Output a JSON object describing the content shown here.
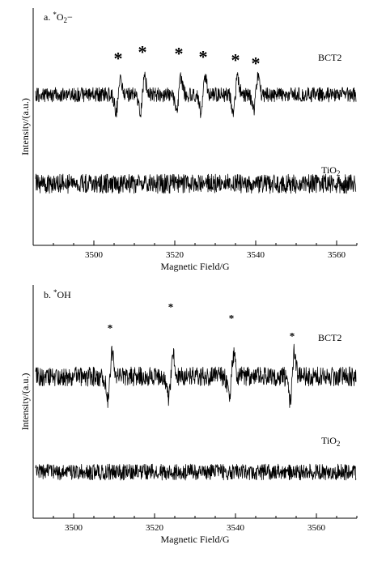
{
  "chart_data": [
    {
      "type": "line",
      "panel_label": "a. *O2−",
      "xlabel": "Magnetic Field/G",
      "ylabel": "Intensity/(a.u.)",
      "xlim": [
        3485,
        3565
      ],
      "x_ticks": [
        3500,
        3520,
        3540,
        3560
      ],
      "y_ticks_shown": false,
      "series": [
        {
          "name": "BCT2",
          "peak_markers": [
            3506,
            3512,
            3521,
            3527,
            3535,
            3540
          ],
          "marker_label": "*"
        },
        {
          "name": "TiO2",
          "peak_markers": [],
          "marker_label": ""
        }
      ]
    },
    {
      "type": "line",
      "panel_label": "b. *OH",
      "xlabel": "Magnetic Field/G",
      "ylabel": "Intensity/(a.u.)",
      "xlim": [
        3490,
        3570
      ],
      "x_ticks": [
        3500,
        3520,
        3540,
        3560
      ],
      "y_ticks_shown": false,
      "series": [
        {
          "name": "BCT2",
          "peak_markers": [
            3509,
            3524,
            3539,
            3554
          ],
          "marker_label": "*"
        },
        {
          "name": "TiO2",
          "peak_markers": [],
          "marker_label": ""
        }
      ]
    }
  ]
}
